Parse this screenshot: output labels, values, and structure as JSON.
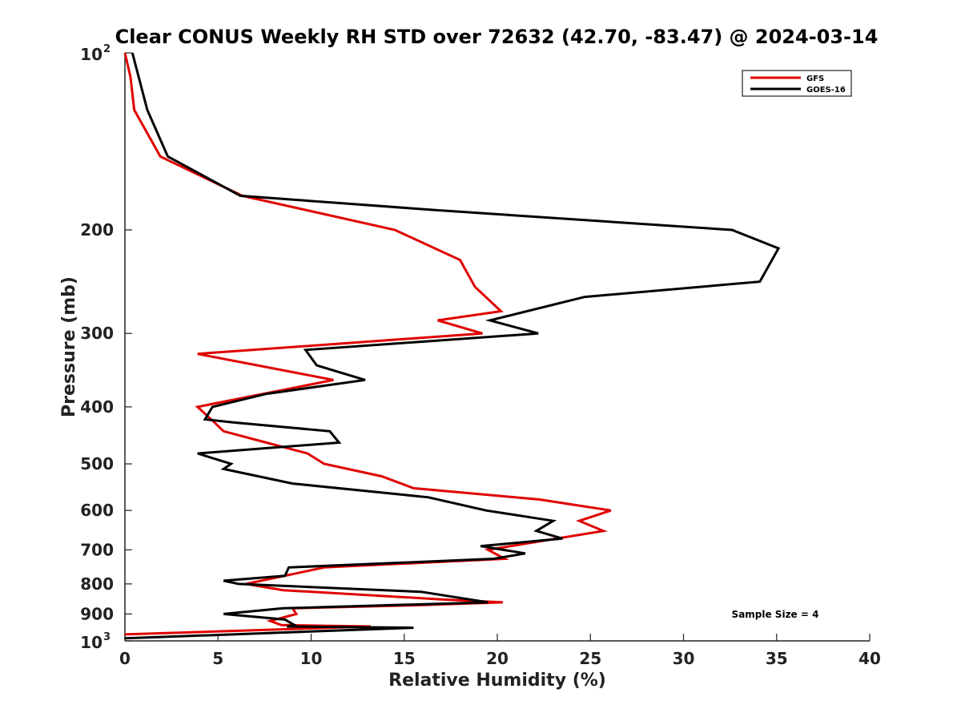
{
  "chart_data": {
    "type": "line",
    "title": "Clear CONUS Weekly RH STD over 72632 (42.70, -83.47) @ 2024-03-14",
    "xlabel": "Relative Humidity (%)",
    "ylabel": "Pressure (mb)",
    "xlim": [
      0,
      40
    ],
    "ylim": [
      1000,
      100
    ],
    "y_scale": "log",
    "y_reversed": true,
    "grid": false,
    "legend_position": "top-right",
    "annotation": "Sample Size = 4",
    "x_ticks": [
      "0",
      "5",
      "10",
      "15",
      "20",
      "25",
      "30",
      "35",
      "40"
    ],
    "y_ticks": [
      {
        "value": 100,
        "base": "10",
        "exp": "2"
      },
      {
        "value": 200,
        "base": "200",
        "exp": ""
      },
      {
        "value": 300,
        "base": "300",
        "exp": ""
      },
      {
        "value": 400,
        "base": "400",
        "exp": ""
      },
      {
        "value": 500,
        "base": "500",
        "exp": ""
      },
      {
        "value": 600,
        "base": "600",
        "exp": ""
      },
      {
        "value": 700,
        "base": "700",
        "exp": ""
      },
      {
        "value": 800,
        "base": "800",
        "exp": ""
      },
      {
        "value": 900,
        "base": "900",
        "exp": ""
      },
      {
        "value": 1000,
        "base": "10",
        "exp": "3"
      }
    ],
    "series": [
      {
        "name": "GFS",
        "color": "#e00000",
        "points": [
          [
            0.0,
            100
          ],
          [
            0.3,
            110
          ],
          [
            0.5,
            125
          ],
          [
            1.9,
            150
          ],
          [
            6.3,
            175
          ],
          [
            14.5,
            200
          ],
          [
            18.0,
            225
          ],
          [
            18.8,
            250
          ],
          [
            20.2,
            275
          ],
          [
            16.8,
            285
          ],
          [
            19.2,
            300
          ],
          [
            3.9,
            325
          ],
          [
            11.2,
            360
          ],
          [
            3.9,
            400
          ],
          [
            4.8,
            425
          ],
          [
            5.3,
            440
          ],
          [
            7.6,
            460
          ],
          [
            9.8,
            480
          ],
          [
            10.7,
            500
          ],
          [
            13.8,
            525
          ],
          [
            15.5,
            550
          ],
          [
            22.3,
            575
          ],
          [
            26.1,
            600
          ],
          [
            24.4,
            625
          ],
          [
            25.7,
            650
          ],
          [
            19.5,
            700
          ],
          [
            20.4,
            725
          ],
          [
            10.7,
            750
          ],
          [
            8.6,
            775
          ],
          [
            6.5,
            800
          ],
          [
            8.5,
            820
          ],
          [
            17.0,
            850
          ],
          [
            20.3,
            860
          ],
          [
            15.5,
            870
          ],
          [
            9.0,
            880
          ],
          [
            9.2,
            900
          ],
          [
            7.8,
            925
          ],
          [
            8.4,
            940
          ],
          [
            13.2,
            945
          ],
          [
            0.0,
            975
          ]
        ]
      },
      {
        "name": "GOES-16",
        "color": "#000000",
        "points": [
          [
            0.4,
            100
          ],
          [
            1.2,
            125
          ],
          [
            2.3,
            150
          ],
          [
            6.2,
            175
          ],
          [
            16.6,
            185
          ],
          [
            32.6,
            200
          ],
          [
            35.1,
            215
          ],
          [
            34.1,
            245
          ],
          [
            24.7,
            260
          ],
          [
            19.6,
            285
          ],
          [
            22.2,
            300
          ],
          [
            9.7,
            320
          ],
          [
            10.3,
            340
          ],
          [
            12.9,
            360
          ],
          [
            7.6,
            380
          ],
          [
            4.7,
            400
          ],
          [
            4.3,
            420
          ],
          [
            5.8,
            425
          ],
          [
            11.0,
            440
          ],
          [
            11.5,
            460
          ],
          [
            3.9,
            480
          ],
          [
            5.7,
            500
          ],
          [
            5.3,
            510
          ],
          [
            9.0,
            540
          ],
          [
            16.3,
            570
          ],
          [
            19.4,
            600
          ],
          [
            23.0,
            625
          ],
          [
            22.1,
            650
          ],
          [
            23.5,
            670
          ],
          [
            19.1,
            690
          ],
          [
            21.5,
            710
          ],
          [
            19.8,
            725
          ],
          [
            8.8,
            750
          ],
          [
            8.6,
            775
          ],
          [
            5.3,
            790
          ],
          [
            6.1,
            800
          ],
          [
            15.9,
            825
          ],
          [
            19.5,
            860
          ],
          [
            8.5,
            880
          ],
          [
            5.3,
            900
          ],
          [
            8.6,
            920
          ],
          [
            9.1,
            940
          ],
          [
            8.7,
            945
          ],
          [
            15.5,
            950
          ],
          [
            0.0,
            990
          ]
        ]
      }
    ]
  }
}
